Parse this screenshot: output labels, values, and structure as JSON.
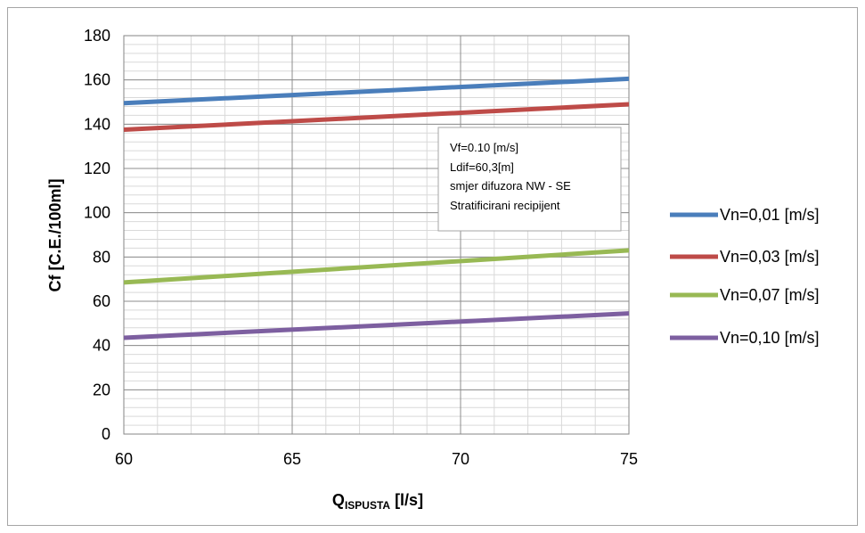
{
  "chart_data": {
    "type": "line",
    "title": "",
    "xlabel": "Q",
    "xlabel_sub": "ISPUSTA",
    "xlabel_unit": " [l/s]",
    "ylabel": "Cf [C.E./100ml]",
    "xlim": [
      60,
      75
    ],
    "ylim": [
      0,
      180
    ],
    "x_ticks": [
      "60",
      "65",
      "70",
      "75"
    ],
    "y_ticks": [
      "0",
      "20",
      "40",
      "60",
      "80",
      "100",
      "120",
      "140",
      "160",
      "180"
    ],
    "grid": true,
    "legend_position": "right",
    "x": [
      60,
      75
    ],
    "series": [
      {
        "name": "Vn=0,01 [m/s]",
        "color": "#4a7ebb",
        "values": [
          149.5,
          160.5
        ]
      },
      {
        "name": "Vn=0,03 [m/s]",
        "color": "#be4b48",
        "values": [
          137.5,
          149
        ]
      },
      {
        "name": "Vn=0,07 [m/s]",
        "color": "#98b954",
        "values": [
          68.5,
          83
        ]
      },
      {
        "name": "Vn=0,10 [m/s]",
        "color": "#7d5fa0",
        "values": [
          43.5,
          54.5
        ]
      }
    ],
    "annotation": {
      "lines": [
        "Vf=0.10 [m/s]",
        "Ldif=60,3[m]",
        "smjer difuzora  NW - SE",
        "Stratificirani recipijent"
      ]
    }
  }
}
